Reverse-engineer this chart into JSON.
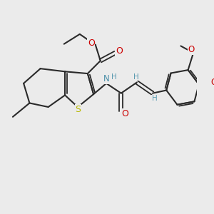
{
  "bg_color": "#ebebeb",
  "bond_color": "#2a2a2a",
  "S_color": "#b8b800",
  "N_color": "#4a8fa8",
  "O_color": "#cc0000",
  "H_color": "#5a9ab0",
  "figsize": [
    3.0,
    3.0
  ],
  "dpi": 100,
  "xlim": [
    0,
    10
  ],
  "ylim": [
    0,
    10
  ]
}
